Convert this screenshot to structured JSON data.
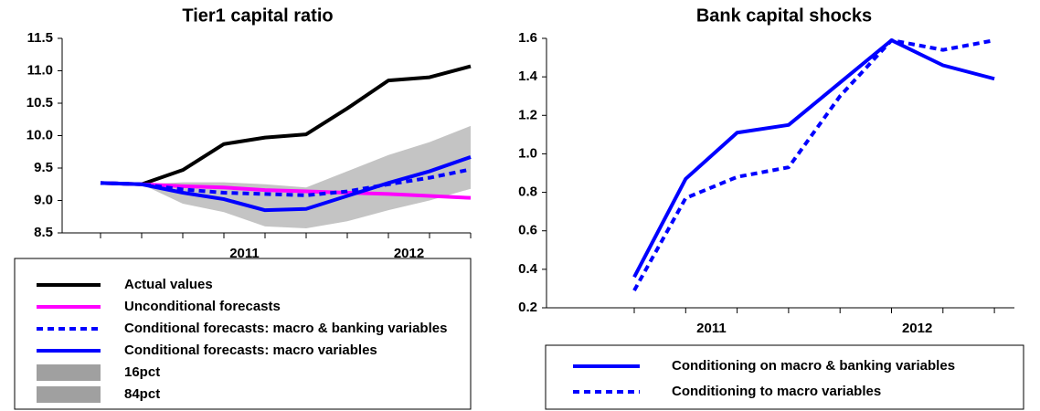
{
  "chart_data": [
    {
      "type": "line",
      "title": "Tier1 capital ratio",
      "categories": [
        null,
        null,
        null,
        "2011",
        null,
        null,
        null,
        "2012",
        null,
        null
      ],
      "ylim": [
        8.5,
        11.5
      ],
      "yticks": [
        8.5,
        {
          "value": 9,
          "label": "9.0"
        },
        9.5,
        {
          "value": 10,
          "label": "10.0"
        },
        10.5,
        {
          "value": 11,
          "label": "11.0"
        },
        11.5
      ],
      "series": [
        {
          "name": "Actual values",
          "color": "#000000",
          "style": "solid",
          "values": [
            9.27,
            9.25,
            9.47,
            9.87,
            9.97,
            10.02,
            10.42,
            10.85,
            10.9,
            11.07
          ]
        },
        {
          "name": "Unconditional forecasts",
          "color": "#ff00ff",
          "style": "solid",
          "values": [
            9.27,
            9.25,
            9.22,
            9.2,
            9.16,
            9.14,
            9.12,
            9.1,
            9.07,
            9.04
          ]
        },
        {
          "name": "Conditional forecasts: macro & banking variables",
          "color": "#0000ff",
          "style": "dotted",
          "values": [
            9.27,
            9.25,
            9.17,
            9.12,
            9.1,
            9.08,
            9.14,
            9.25,
            9.35,
            9.48
          ]
        },
        {
          "name": "Conditional forecasts: macro variables",
          "color": "#0000ff",
          "style": "solid",
          "values": [
            9.27,
            9.25,
            9.12,
            9.02,
            8.85,
            8.87,
            9.07,
            9.27,
            9.45,
            9.67
          ]
        },
        {
          "name": "16pct",
          "color": "#a0a0a0",
          "style": "area",
          "values": [
            null,
            9.25,
            8.95,
            8.82,
            8.6,
            8.57,
            8.68,
            8.85,
            9.0,
            9.18
          ]
        },
        {
          "name": "84pct",
          "color": "#a0a0a0",
          "style": "area",
          "values": [
            null,
            9.25,
            9.28,
            9.28,
            9.25,
            9.2,
            9.45,
            9.7,
            9.9,
            10.15
          ]
        }
      ]
    },
    {
      "type": "line",
      "title": "Bank capital shocks",
      "categories": [
        null,
        "2011",
        null,
        null,
        null,
        "2012",
        null,
        null
      ],
      "ylim": [
        0.2,
        1.6
      ],
      "yticks": [
        0.2,
        0.4,
        0.6,
        0.8,
        {
          "value": 1,
          "label": "1.0"
        },
        1.2,
        1.4,
        1.6
      ],
      "series": [
        {
          "name": "Conditioning on macro & banking variables",
          "color": "#0000ff",
          "style": "solid",
          "values": [
            0.36,
            0.87,
            1.11,
            1.15,
            1.37,
            1.59,
            1.46,
            1.39
          ]
        },
        {
          "name": "Conditioning to macro variables",
          "color": "#0000ff",
          "style": "dotted",
          "values": [
            0.29,
            0.77,
            0.88,
            0.93,
            1.3,
            1.59,
            1.54,
            1.59
          ]
        }
      ]
    }
  ]
}
